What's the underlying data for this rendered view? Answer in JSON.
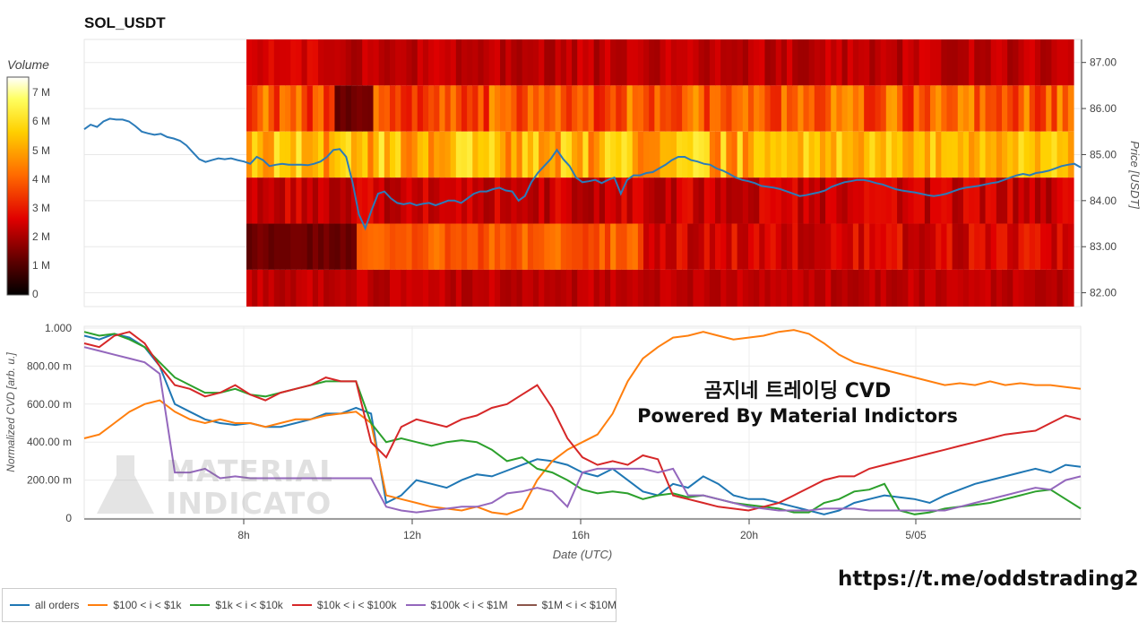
{
  "title": "SOL_USDT",
  "colorbar": {
    "title": "Volume",
    "ticks": [
      "7 M",
      "6 M",
      "5 M",
      "4 M",
      "3 M",
      "2 M",
      "1 M",
      "0"
    ]
  },
  "overlay": {
    "line1": "곰지네 트레이딩 CVD",
    "line2": "Powered By Material Indictors"
  },
  "watermark": {
    "line1": "MATERIAL",
    "line2": "INDICATORS"
  },
  "link": "https://t.me/oddstrading2",
  "colors": {
    "price_line": "#2b7bb9",
    "all_orders": "#1f77b4",
    "s100_1k": "#ff7f0e",
    "s1k_10k": "#2ca02c",
    "s10k_100k": "#d62728",
    "s100k_1m": "#9467bd",
    "s1m_10m": "#8c564b"
  },
  "chart_data": [
    {
      "type": "heatmap",
      "title": "SOL_USDT",
      "ylabel": "Price [USDT]",
      "y_ticks": [
        "87.00",
        "86.00",
        "85.00",
        "84.00",
        "83.00",
        "82.00"
      ],
      "ylim": [
        81.7,
        87.5
      ],
      "colorbar_label": "Volume",
      "price_bins": [
        87.0,
        86.0,
        85.0,
        84.0,
        83.0,
        82.0
      ],
      "price_line": [
        85.55,
        85.65,
        85.6,
        85.72,
        85.78,
        85.76,
        85.76,
        85.72,
        85.62,
        85.5,
        85.46,
        85.43,
        85.45,
        85.38,
        85.35,
        85.3,
        85.2,
        85.05,
        84.9,
        84.84,
        84.88,
        84.92,
        84.9,
        84.92,
        84.88,
        84.85,
        84.8,
        84.95,
        84.88,
        84.75,
        84.78,
        84.8,
        84.78,
        84.78,
        84.78,
        84.77,
        84.8,
        84.85,
        84.95,
        85.1,
        85.12,
        84.95,
        84.4,
        83.7,
        83.4,
        83.8,
        84.15,
        84.2,
        84.05,
        83.95,
        83.92,
        83.95,
        83.9,
        83.93,
        83.95,
        83.9,
        83.95,
        84.0,
        84.0,
        83.95,
        84.05,
        84.15,
        84.2,
        84.2,
        84.25,
        84.28,
        84.22,
        84.2,
        84.0,
        84.1,
        84.4,
        84.6,
        84.75,
        84.9,
        85.1,
        84.9,
        84.75,
        84.5,
        84.4,
        84.42,
        84.45,
        84.38,
        84.45,
        84.5,
        84.15,
        84.45,
        84.55,
        84.55,
        84.6,
        84.62,
        84.7,
        84.78,
        84.88,
        84.95,
        84.95,
        84.88,
        84.85,
        84.8,
        84.78,
        84.7,
        84.65,
        84.58,
        84.5,
        84.45,
        84.42,
        84.38,
        84.32,
        84.3,
        84.28,
        84.25,
        84.2,
        84.15,
        84.1,
        84.12,
        84.15,
        84.18,
        84.22,
        84.3,
        84.35,
        84.4,
        84.42,
        84.45,
        84.45,
        84.42,
        84.38,
        84.35,
        84.3,
        84.25,
        84.22,
        84.2,
        84.18,
        84.15,
        84.12,
        84.1,
        84.12,
        84.15,
        84.2,
        84.25,
        84.28,
        84.3,
        84.32,
        84.35,
        84.38,
        84.4,
        84.45,
        84.5,
        84.55,
        84.58,
        84.55,
        84.6,
        84.62,
        84.65,
        84.7,
        84.75,
        84.78,
        84.8,
        84.72
      ]
    },
    {
      "type": "line",
      "xlabel": "Date (UTC)",
      "ylabel": "Normalized CVD [arb. u.]",
      "x_ticks": [
        "8h",
        "12h",
        "16h",
        "20h",
        "5/05"
      ],
      "y_ticks": [
        "1.000",
        "800.00 m",
        "600.00 m",
        "400.00 m",
        "200.00 m",
        "0"
      ],
      "ylim": [
        0,
        1.0
      ],
      "series": [
        {
          "name": "all orders",
          "values": [
            0.96,
            0.94,
            0.97,
            0.95,
            0.9,
            0.8,
            0.6,
            0.56,
            0.52,
            0.5,
            0.49,
            0.5,
            0.48,
            0.48,
            0.5,
            0.52,
            0.55,
            0.55,
            0.58,
            0.55,
            0.08,
            0.12,
            0.2,
            0.18,
            0.16,
            0.2,
            0.23,
            0.22,
            0.25,
            0.28,
            0.31,
            0.3,
            0.28,
            0.24,
            0.22,
            0.26,
            0.2,
            0.14,
            0.12,
            0.18,
            0.16,
            0.22,
            0.18,
            0.12,
            0.1,
            0.1,
            0.08,
            0.06,
            0.04,
            0.02,
            0.04,
            0.08,
            0.1,
            0.12,
            0.11,
            0.1,
            0.08,
            0.12,
            0.15,
            0.18,
            0.2,
            0.22,
            0.24,
            0.26,
            0.24,
            0.28,
            0.27
          ]
        },
        {
          "name": "$100 < i < $1k",
          "values": [
            0.42,
            0.44,
            0.5,
            0.56,
            0.6,
            0.62,
            0.56,
            0.52,
            0.5,
            0.52,
            0.5,
            0.5,
            0.48,
            0.5,
            0.52,
            0.52,
            0.54,
            0.55,
            0.56,
            0.5,
            0.12,
            0.1,
            0.08,
            0.06,
            0.05,
            0.04,
            0.06,
            0.03,
            0.02,
            0.05,
            0.2,
            0.3,
            0.36,
            0.4,
            0.44,
            0.55,
            0.72,
            0.84,
            0.9,
            0.95,
            0.96,
            0.98,
            0.96,
            0.94,
            0.95,
            0.96,
            0.98,
            0.99,
            0.97,
            0.92,
            0.86,
            0.82,
            0.8,
            0.78,
            0.76,
            0.74,
            0.72,
            0.7,
            0.71,
            0.7,
            0.72,
            0.7,
            0.71,
            0.7,
            0.7,
            0.69,
            0.68
          ]
        },
        {
          "name": "$1k < i < $10k",
          "values": [
            0.98,
            0.96,
            0.97,
            0.94,
            0.9,
            0.82,
            0.74,
            0.7,
            0.66,
            0.66,
            0.68,
            0.65,
            0.64,
            0.66,
            0.68,
            0.7,
            0.72,
            0.72,
            0.72,
            0.5,
            0.4,
            0.42,
            0.4,
            0.38,
            0.4,
            0.41,
            0.4,
            0.36,
            0.3,
            0.32,
            0.26,
            0.24,
            0.2,
            0.15,
            0.13,
            0.14,
            0.13,
            0.1,
            0.12,
            0.13,
            0.11,
            0.12,
            0.1,
            0.08,
            0.07,
            0.06,
            0.05,
            0.03,
            0.03,
            0.08,
            0.1,
            0.14,
            0.15,
            0.18,
            0.04,
            0.02,
            0.03,
            0.05,
            0.06,
            0.07,
            0.08,
            0.1,
            0.12,
            0.14,
            0.15,
            0.1,
            0.05
          ]
        },
        {
          "name": "$10k < i < $100k",
          "values": [
            0.92,
            0.9,
            0.96,
            0.98,
            0.92,
            0.8,
            0.7,
            0.68,
            0.64,
            0.66,
            0.7,
            0.65,
            0.62,
            0.66,
            0.68,
            0.7,
            0.74,
            0.72,
            0.72,
            0.4,
            0.32,
            0.48,
            0.52,
            0.5,
            0.48,
            0.52,
            0.54,
            0.58,
            0.6,
            0.65,
            0.7,
            0.58,
            0.42,
            0.32,
            0.28,
            0.3,
            0.28,
            0.33,
            0.31,
            0.12,
            0.1,
            0.08,
            0.06,
            0.05,
            0.04,
            0.06,
            0.08,
            0.12,
            0.16,
            0.2,
            0.22,
            0.22,
            0.26,
            0.28,
            0.3,
            0.32,
            0.34,
            0.36,
            0.38,
            0.4,
            0.42,
            0.44,
            0.45,
            0.46,
            0.5,
            0.54,
            0.52
          ]
        },
        {
          "name": "$100k < i < $1M",
          "values": [
            0.9,
            0.88,
            0.86,
            0.84,
            0.82,
            0.76,
            0.24,
            0.24,
            0.26,
            0.21,
            0.22,
            0.21,
            0.21,
            0.21,
            0.21,
            0.21,
            0.21,
            0.21,
            0.21,
            0.21,
            0.06,
            0.04,
            0.03,
            0.04,
            0.05,
            0.06,
            0.06,
            0.08,
            0.13,
            0.14,
            0.16,
            0.14,
            0.06,
            0.24,
            0.26,
            0.26,
            0.26,
            0.26,
            0.24,
            0.26,
            0.12,
            0.12,
            0.1,
            0.08,
            0.06,
            0.05,
            0.04,
            0.04,
            0.04,
            0.05,
            0.05,
            0.05,
            0.04,
            0.04,
            0.04,
            0.04,
            0.04,
            0.04,
            0.06,
            0.08,
            0.1,
            0.12,
            0.14,
            0.16,
            0.15,
            0.2,
            0.22
          ]
        }
      ]
    }
  ]
}
